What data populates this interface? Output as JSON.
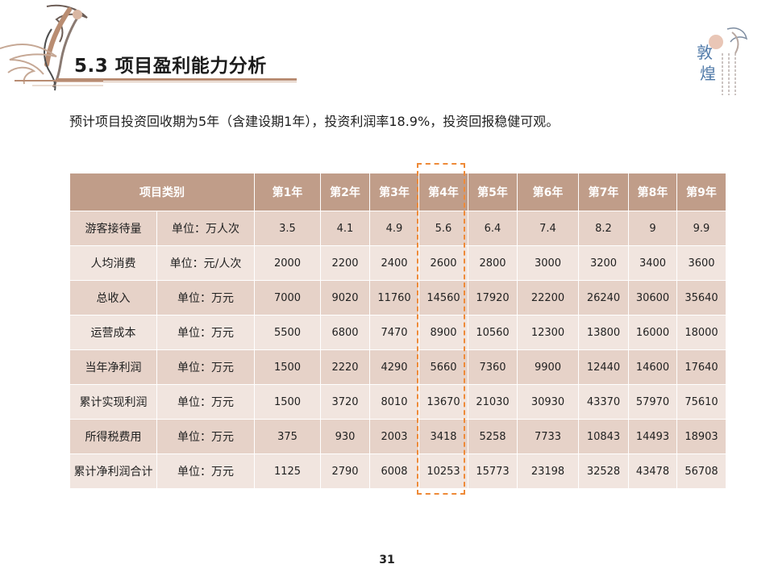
{
  "header": {
    "title": "5.3 项目盈利能力分析",
    "brand_logo": "dunhuang-logo"
  },
  "intro_text": "预计项目投资回收期为5年（含建设期1年），投资利润率18.9%，投资回报稳健可观。",
  "table": {
    "header_label": "项目类别",
    "years": [
      "第1年",
      "第2年",
      "第3年",
      "第4年",
      "第5年",
      "第6年",
      "第7年",
      "第8年",
      "第9年"
    ],
    "rows": [
      {
        "label": "游客接待量",
        "unit": "单位：万人次",
        "values": [
          "3.5",
          "4.1",
          "4.9",
          "5.6",
          "6.4",
          "7.4",
          "8.2",
          "9",
          "9.9"
        ]
      },
      {
        "label": "人均消费",
        "unit": "单位：元/人次",
        "values": [
          "2000",
          "2200",
          "2400",
          "2600",
          "2800",
          "3000",
          "3200",
          "3400",
          "3600"
        ]
      },
      {
        "label": "总收入",
        "unit": "单位：万元",
        "values": [
          "7000",
          "9020",
          "11760",
          "14560",
          "17920",
          "22200",
          "26240",
          "30600",
          "35640"
        ]
      },
      {
        "label": "运营成本",
        "unit": "单位：万元",
        "values": [
          "5500",
          "6800",
          "7470",
          "8900",
          "10560",
          "12300",
          "13800",
          "16000",
          "18000"
        ]
      },
      {
        "label": "当年净利润",
        "unit": "单位：万元",
        "values": [
          "1500",
          "2220",
          "4290",
          "5660",
          "7360",
          "9900",
          "12440",
          "14600",
          "17640"
        ]
      },
      {
        "label": "累计实现利润",
        "unit": "单位：万元",
        "values": [
          "1500",
          "3720",
          "8010",
          "13670",
          "21030",
          "30930",
          "43370",
          "57970",
          "75610"
        ]
      },
      {
        "label": "所得税费用",
        "unit": "单位：万元",
        "values": [
          "375",
          "930",
          "2003",
          "3418",
          "5258",
          "7733",
          "10843",
          "14493",
          "18903"
        ]
      },
      {
        "label": "累计净利润合计",
        "unit": "单位：万元",
        "values": [
          "1125",
          "2790",
          "6008",
          "10253",
          "15773",
          "23198",
          "32528",
          "43478",
          "56708"
        ]
      }
    ],
    "highlighted_column": "第4年"
  },
  "page_number": "31",
  "colors": {
    "header_bg": "#c09d89",
    "row_odd": "#e6d2c8",
    "row_even": "#f1e5df",
    "highlight": "#ee8a38"
  }
}
